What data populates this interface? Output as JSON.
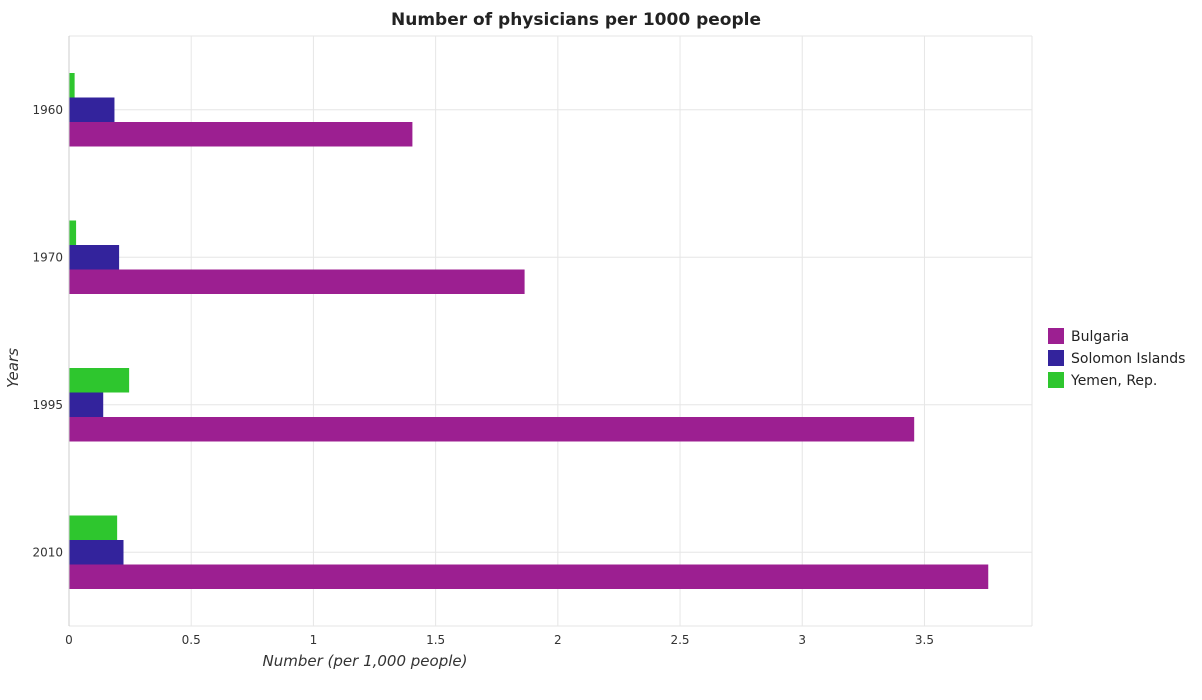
{
  "chart_data": {
    "type": "bar",
    "orientation": "horizontal",
    "title": "Number of physicians per 1000 people",
    "xlabel": "Number (per 1,000 people)",
    "ylabel": "Years",
    "categories": [
      "1960",
      "1970",
      "1995",
      "2010"
    ],
    "xlim": [
      0,
      3.94
    ],
    "xticks": [
      0,
      0.5,
      1,
      1.5,
      2,
      2.5,
      3,
      3.5
    ],
    "xtick_labels": [
      "0",
      "0.5",
      "1",
      "1.5",
      "2",
      "2.5",
      "3",
      "3.5"
    ],
    "grid": true,
    "legend_position": "right",
    "series": [
      {
        "name": "Bulgaria",
        "color": "#9c1f91",
        "values": [
          1.405,
          1.864,
          3.458,
          3.761
        ]
      },
      {
        "name": "Solomon Islands",
        "color": "#33239c",
        "values": [
          0.186,
          0.205,
          0.14,
          0.223
        ]
      },
      {
        "name": "Yemen, Rep.",
        "color": "#2ec62e",
        "values": [
          0.023,
          0.029,
          0.246,
          0.197
        ]
      }
    ]
  }
}
